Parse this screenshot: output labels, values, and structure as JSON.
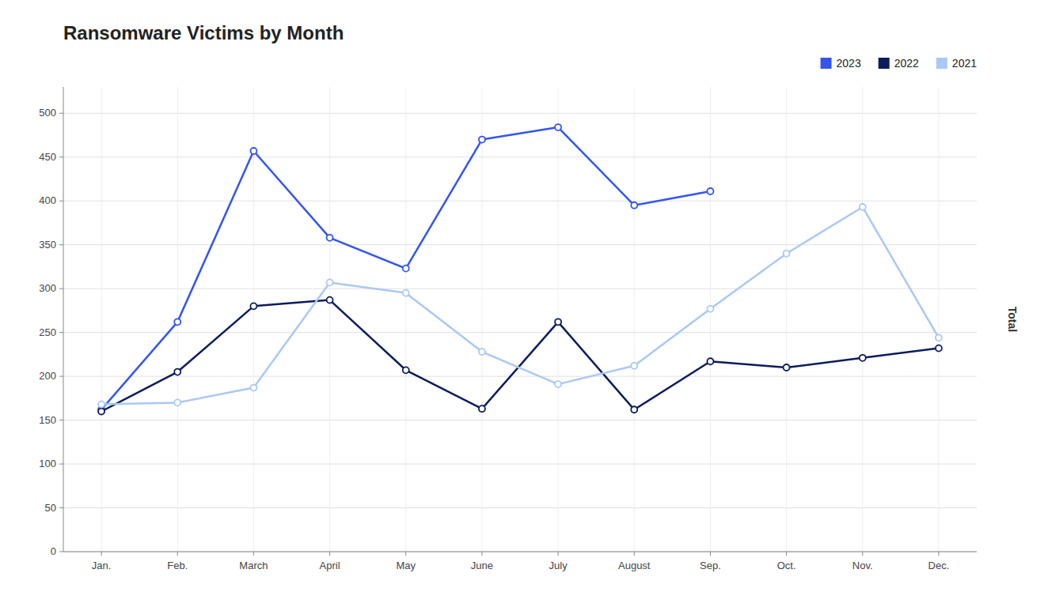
{
  "chart_data": {
    "type": "line",
    "title": "Ransomware Victims by Month",
    "ylabel": "Total",
    "categories": [
      "Jan.",
      "Feb.",
      "March",
      "April",
      "May",
      "June",
      "July",
      "August",
      "Sep.",
      "Oct.",
      "Nov.",
      "Dec."
    ],
    "series": [
      {
        "name": "2023",
        "color": "#3355ee",
        "marker": "circle",
        "values": [
          162,
          262,
          457,
          358,
          323,
          470,
          484,
          395,
          411,
          null,
          null,
          null
        ]
      },
      {
        "name": "2022",
        "color": "#0d1b5e",
        "marker": "circle",
        "values": [
          160,
          205,
          280,
          287,
          207,
          163,
          262,
          162,
          217,
          210,
          221,
          232
        ]
      },
      {
        "name": "2021",
        "color": "#aac8f4",
        "marker": "circle",
        "values": [
          168,
          170,
          187,
          307,
          295,
          228,
          191,
          212,
          277,
          340,
          393,
          244
        ]
      }
    ],
    "ylim": [
      0,
      530
    ],
    "yticks": [
      0,
      50,
      100,
      150,
      200,
      250,
      300,
      350,
      400,
      450,
      500
    ],
    "grid": true,
    "legend": "top-right"
  }
}
